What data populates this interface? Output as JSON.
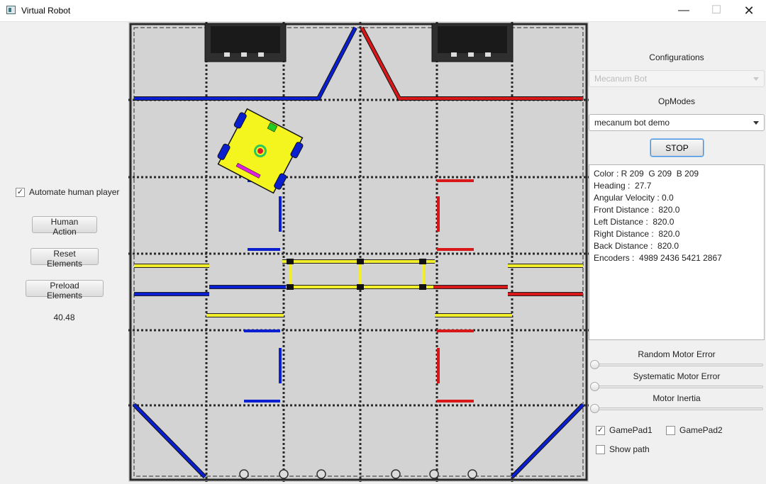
{
  "window": {
    "title": "Virtual Robot"
  },
  "left_panel": {
    "automate_label": "Automate human player",
    "automate_checked": true,
    "human_action_label": "Human Action",
    "reset_elements_label": "Reset Elements",
    "preload_elements_label": "Preload Elements",
    "elapsed": "40.48"
  },
  "right_panel": {
    "configurations_label": "Configurations",
    "configuration_value": "Mecanum Bot",
    "opmodes_label": "OpModes",
    "opmode_value": "mecanum bot demo",
    "stop_label": "STOP",
    "telemetry": [
      "Color : R 209  G 209  B 209",
      "Heading :  27.7",
      "Angular Velocity : 0.0",
      "Front Distance :  820.0",
      "Left Distance :  820.0",
      "Right Distance :  820.0",
      "Back Distance :  820.0",
      "Encoders :  4989 2436 5421 2867"
    ],
    "random_error_label": "Random Motor Error",
    "random_error_value": 0,
    "systematic_error_label": "Systematic Motor Error",
    "systematic_error_value": 0,
    "inertia_label": "Motor Inertia",
    "inertia_value": 0,
    "gamepad1_label": "GamePad1",
    "gamepad1_checked": true,
    "gamepad2_label": "GamePad2",
    "gamepad2_checked": false,
    "show_path_label": "Show path",
    "show_path_checked": false
  },
  "field": {
    "robot_heading_deg": 27.7,
    "colors": {
      "blue": "#0a1fd0",
      "red": "#d81818",
      "yellow": "#f2ee2a",
      "robot": "#f4f41e",
      "tile": "#d3d3d3"
    }
  }
}
